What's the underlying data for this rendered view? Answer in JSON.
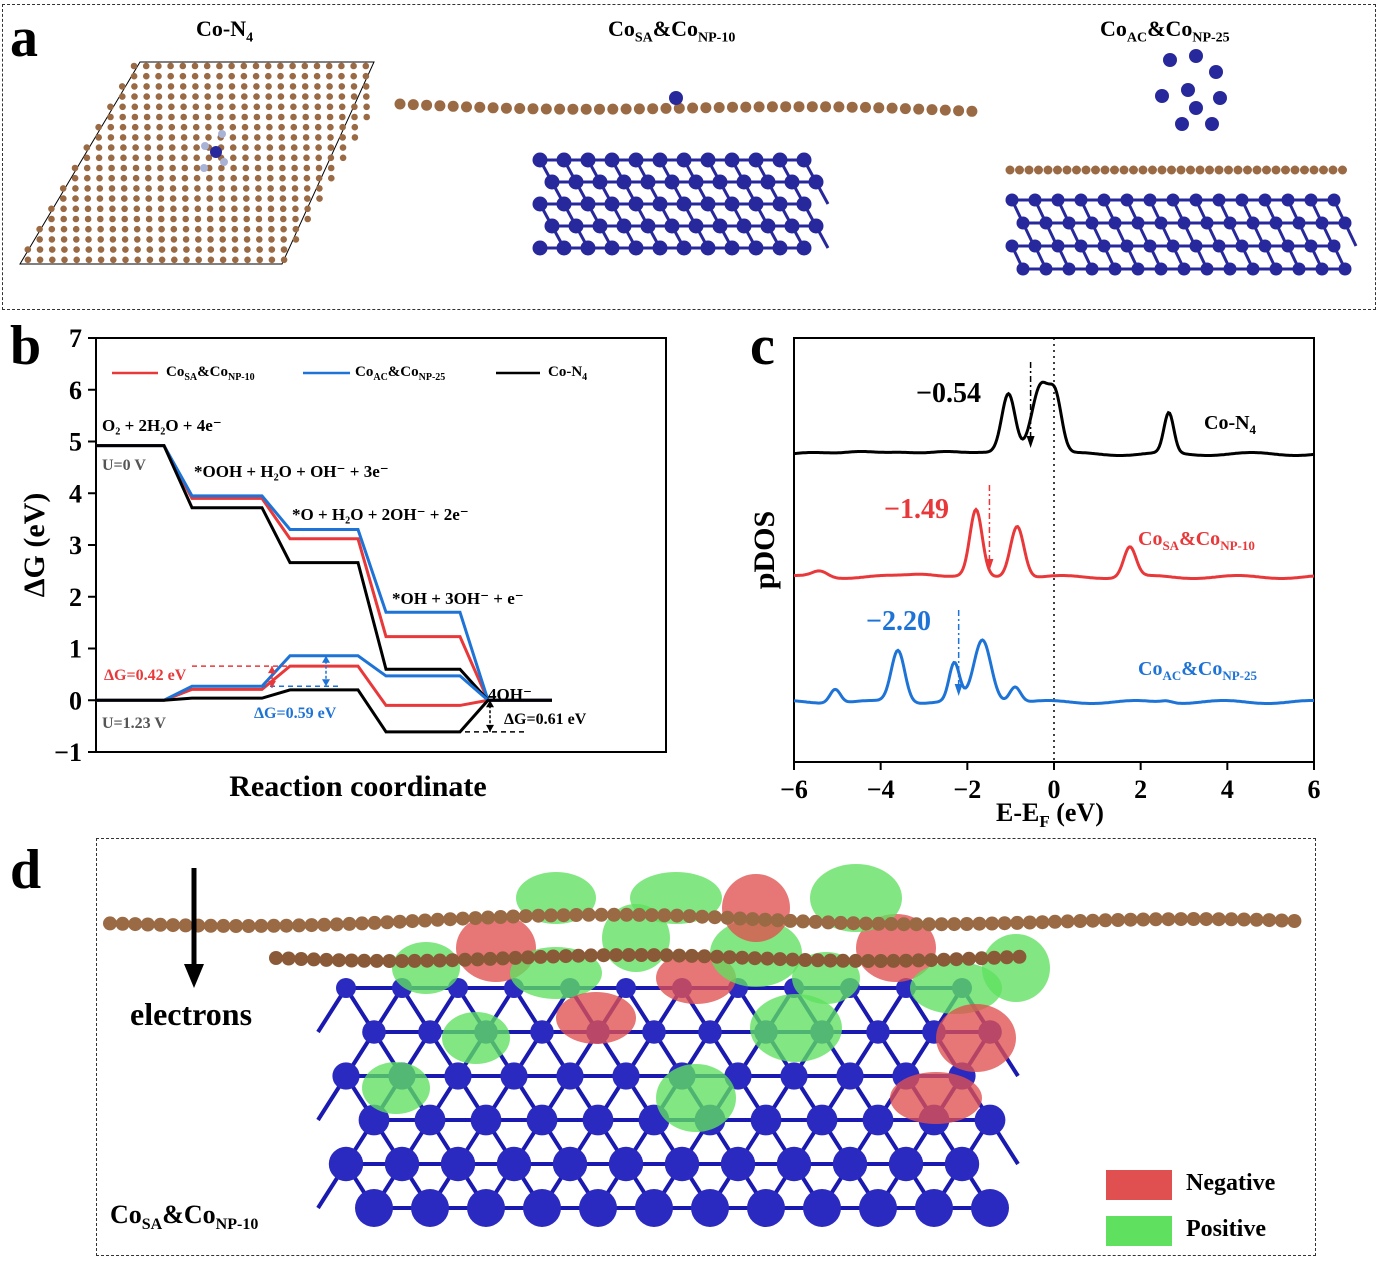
{
  "panel_a": {
    "label": "a",
    "titles": [
      {
        "base": "Co-N",
        "sub": "4",
        "rest": "",
        "sub2": ""
      },
      {
        "base": "Co",
        "sub": "SA",
        "rest": "&Co",
        "sub2": "NP-10"
      },
      {
        "base": "Co",
        "sub": "AC",
        "rest": "&Co",
        "sub2": "NP-25"
      }
    ],
    "colors": {
      "carbon": "#9a6a45",
      "nitrogen": "#a9b3d6",
      "cobalt": "#27289b"
    }
  },
  "panel_b": {
    "label": "b",
    "legend": [
      {
        "base": "Co",
        "sub": "SA",
        "rest": "&Co",
        "sub2": "NP-10",
        "color": "#e8383a"
      },
      {
        "base": "Co",
        "sub": "AC",
        "rest": "&Co",
        "sub2": "NP-25",
        "color": "#1e73d6"
      },
      {
        "base": "Co-N",
        "sub": "4",
        "rest": "",
        "sub2": "",
        "color": "#000000"
      }
    ],
    "annotations": {
      "state0": "O₂ + 2H₂O + 4e⁻",
      "state1": "*OOH + H₂O + OH⁻ + 3e⁻",
      "state2": "*O + H₂O + 2OH⁻ + 2e⁻",
      "state3": "*OH + 3OH⁻ + e⁻",
      "state4": "4OH⁻",
      "u0": "U=0 V",
      "u123": "U=1.23 V",
      "dg_red": "ΔG=0.42 eV",
      "dg_blue": "ΔG=0.59 eV",
      "dg_black": "ΔG=0.61 eV"
    }
  },
  "panel_c": {
    "label": "c",
    "annotations": {
      "black_center": "−0.54",
      "red_center": "−1.49",
      "blue_center": "−2.20"
    },
    "curve_labels": [
      {
        "base": "Co-N",
        "sub": "4",
        "rest": "",
        "sub2": "",
        "color": "#000000"
      },
      {
        "base": "Co",
        "sub": "SA",
        "rest": "&Co",
        "sub2": "NP-10",
        "color": "#e8383a"
      },
      {
        "base": "Co",
        "sub": "AC",
        "rest": "&Co",
        "sub2": "NP-25",
        "color": "#1e73d6"
      }
    ]
  },
  "panel_d": {
    "label": "d",
    "arrow_label": "electrons",
    "title": {
      "base": "Co",
      "sub": "SA",
      "rest": "&Co",
      "sub2": "NP-10"
    },
    "legend": [
      {
        "label": "Negative",
        "color": "#e05050"
      },
      {
        "label": "Positive",
        "color": "#5fe05f"
      }
    ]
  },
  "chart_data": [
    {
      "type": "line",
      "panel": "b",
      "xlabel": "Reaction coordinate",
      "ylabel": "ΔG (eV)",
      "ylim": [
        -1,
        7
      ],
      "yticks": [
        -1,
        0,
        1,
        2,
        3,
        4,
        5,
        6,
        7
      ],
      "categories": [
        "O₂ + 2H₂O + 4e⁻",
        "*OOH + H₂O + OH⁻ + 3e⁻",
        "*O + H₂O + 2OH⁻ + 2e⁻",
        "*OH + 3OH⁻ + e⁻",
        "4OH⁻"
      ],
      "series": [
        {
          "name": "CoSA&CoNP-10 (U=0 V)",
          "color": "#e8383a",
          "values": [
            4.92,
            3.9,
            3.12,
            1.23,
            0
          ]
        },
        {
          "name": "CoAC&CoNP-25 (U=0 V)",
          "color": "#1e73d6",
          "values": [
            4.92,
            3.95,
            3.3,
            1.7,
            0
          ]
        },
        {
          "name": "Co-N4 (U=0 V)",
          "color": "#000000",
          "values": [
            4.92,
            3.72,
            2.66,
            0.6,
            0
          ]
        },
        {
          "name": "CoSA&CoNP-10 (U=1.23 V)",
          "color": "#e8383a",
          "values": [
            0,
            0.21,
            0.66,
            -0.1,
            0
          ]
        },
        {
          "name": "CoAC&CoNP-25 (U=1.23 V)",
          "color": "#1e73d6",
          "values": [
            0,
            0.27,
            0.86,
            0.47,
            0
          ]
        },
        {
          "name": "Co-N4 (U=1.23 V)",
          "color": "#000000",
          "values": [
            0,
            0.04,
            0.2,
            -0.61,
            0
          ]
        }
      ]
    },
    {
      "type": "line",
      "panel": "c",
      "xlabel": "E-E_F (eV)",
      "ylabel": "pDOS",
      "xlim": [
        -6,
        6
      ],
      "xticks": [
        -6,
        -4,
        -2,
        0,
        2,
        4,
        6
      ],
      "series": [
        {
          "name": "Co-N4",
          "color": "#000000",
          "d_band_center": -0.54
        },
        {
          "name": "CoSA&CoNP-10",
          "color": "#e8383a",
          "d_band_center": -1.49
        },
        {
          "name": "CoAC&CoNP-25",
          "color": "#1e73d6",
          "d_band_center": -2.2
        }
      ]
    }
  ]
}
